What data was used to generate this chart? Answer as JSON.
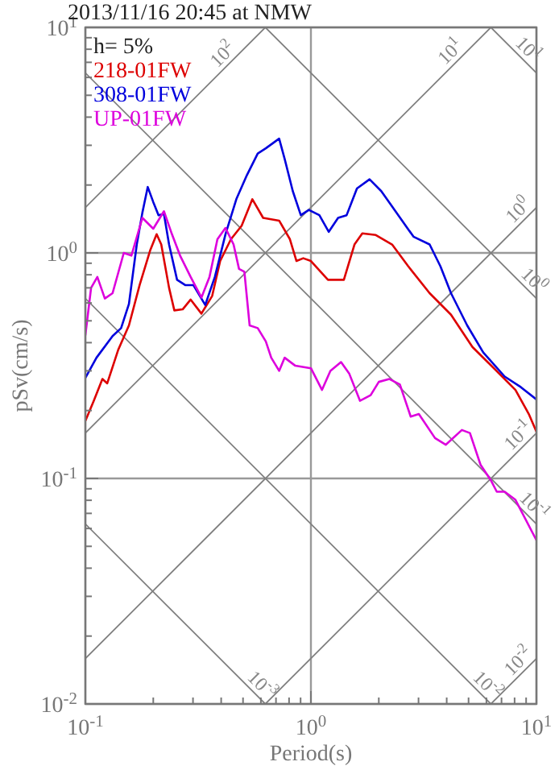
{
  "chart_data": {
    "type": "line",
    "title": "2013/11/16 20:45 at NMW",
    "xlabel": "Period(s)",
    "ylabel": "pSv(cm/s)",
    "log": "xy",
    "grid": true,
    "legend": "top left",
    "xlim": [
      0.1,
      10
    ],
    "ylim": [
      0.01,
      10
    ],
    "xticks": [
      {
        "value": 0.1,
        "label": "10$^{-1}$"
      },
      {
        "value": 0.2,
        "label": null
      },
      {
        "value": 0.3,
        "label": null
      },
      {
        "value": 0.4,
        "label": null
      },
      {
        "value": 0.5,
        "label": null
      },
      {
        "value": 0.6,
        "label": null
      },
      {
        "value": 0.7,
        "label": null
      },
      {
        "value": 0.8,
        "label": null
      },
      {
        "value": 0.9,
        "label": null
      },
      {
        "value": 1,
        "label": "10$^{0}$"
      },
      {
        "value": 2,
        "label": null
      },
      {
        "value": 3,
        "label": null
      },
      {
        "value": 4,
        "label": null
      },
      {
        "value": 5,
        "label": null
      },
      {
        "value": 6,
        "label": null
      },
      {
        "value": 7,
        "label": null
      },
      {
        "value": 8,
        "label": null
      },
      {
        "value": 9,
        "label": null
      },
      {
        "value": 10,
        "label": "10$^{1}$"
      }
    ],
    "yticks": [
      {
        "value": 0.01,
        "label": "10$^{-2}$"
      },
      {
        "value": 0.02,
        "label": null
      },
      {
        "value": 0.03,
        "label": null
      },
      {
        "value": 0.04,
        "label": null
      },
      {
        "value": 0.05,
        "label": null
      },
      {
        "value": 0.06,
        "label": null
      },
      {
        "value": 0.07,
        "label": null
      },
      {
        "value": 0.08,
        "label": null
      },
      {
        "value": 0.09,
        "label": null
      },
      {
        "value": 0.1,
        "label": "10$^{-1}$"
      },
      {
        "value": 0.2,
        "label": null
      },
      {
        "value": 0.3,
        "label": null
      },
      {
        "value": 0.4,
        "label": null
      },
      {
        "value": 0.5,
        "label": null
      },
      {
        "value": 0.6,
        "label": null
      },
      {
        "value": 0.7,
        "label": null
      },
      {
        "value": 0.8,
        "label": null
      },
      {
        "value": 0.9,
        "label": null
      },
      {
        "value": 1,
        "label": "10$^{0}$"
      },
      {
        "value": 2,
        "label": null
      },
      {
        "value": 3,
        "label": null
      },
      {
        "value": 4,
        "label": null
      },
      {
        "value": 5,
        "label": null
      },
      {
        "value": 6,
        "label": null
      },
      {
        "value": 7,
        "label": null
      },
      {
        "value": 8,
        "label": null
      },
      {
        "value": 9,
        "label": null
      },
      {
        "value": 10,
        "label": "10$^{1}$"
      }
    ],
    "series": [
      {
        "color": "#808080",
        "x": [
          0.1,
          0.628
        ],
        "values": [
          1.59,
          10
        ]
      },
      {
        "color": "#808080",
        "x": [
          0.1,
          6.28
        ],
        "values": [
          0.159,
          10
        ]
      },
      {
        "color": "#808080",
        "x": [
          0.1,
          10
        ],
        "values": [
          0.0159,
          1.59
        ]
      },
      {
        "color": "#808080",
        "x": [
          0.628,
          10
        ],
        "values": [
          0.01,
          0.159
        ]
      },
      {
        "color": "#808080",
        "x": [
          6.28,
          10
        ],
        "values": [
          0.01,
          0.0159
        ]
      },
      {
        "color": "#808080",
        "x": [
          6.28,
          10
        ],
        "values": [
          10,
          6.28
        ]
      },
      {
        "color": "#808080",
        "x": [
          0.628,
          10
        ],
        "values": [
          10,
          0.628
        ]
      },
      {
        "color": "#808080",
        "x": [
          0.1,
          10
        ],
        "values": [
          6.28,
          0.0628
        ]
      },
      {
        "color": "#808080",
        "x": [
          0.1,
          6.28
        ],
        "values": [
          0.628,
          0.01
        ]
      },
      {
        "color": "#808080",
        "x": [
          0.1,
          0.628
        ],
        "values": [
          0.0628,
          0.01
        ]
      },
      {
        "name": "218-01FW",
        "color": "#dd0000",
        "x": [
          0.1,
          0.109,
          0.119,
          0.125,
          0.14,
          0.156,
          0.174,
          0.194,
          0.207,
          0.217,
          0.235,
          0.248,
          0.27,
          0.293,
          0.327,
          0.365,
          0.396,
          0.442,
          0.493,
          0.55,
          0.614,
          0.723,
          0.807,
          0.863,
          0.925,
          1.0,
          1.19,
          1.4,
          1.56,
          1.69,
          1.94,
          2.29,
          2.7,
          3.36,
          4.18,
          5.2,
          6.48,
          8.07,
          9.25,
          10
        ],
        "values": [
          0.18,
          0.221,
          0.276,
          0.264,
          0.373,
          0.477,
          0.72,
          1.03,
          1.21,
          1.09,
          0.7,
          0.556,
          0.562,
          0.621,
          0.538,
          0.645,
          0.921,
          1.15,
          1.32,
          1.73,
          1.43,
          1.39,
          1.15,
          0.921,
          0.947,
          0.921,
          0.76,
          0.76,
          1.09,
          1.22,
          1.2,
          1.09,
          0.873,
          0.663,
          0.532,
          0.383,
          0.308,
          0.247,
          0.193,
          0.161
        ]
      },
      {
        "name": "308-01FW",
        "color": "#0000dd",
        "x": [
          0.1,
          0.112,
          0.132,
          0.144,
          0.156,
          0.169,
          0.179,
          0.189,
          0.2,
          0.211,
          0.223,
          0.235,
          0.255,
          0.277,
          0.301,
          0.34,
          0.375,
          0.418,
          0.467,
          0.52,
          0.581,
          0.631,
          0.723,
          0.765,
          0.831,
          0.902,
          0.979,
          1.09,
          1.2,
          1.32,
          1.44,
          1.6,
          1.82,
          2.05,
          2.35,
          2.85,
          3.36,
          3.75,
          4.18,
          4.93,
          5.81,
          7.23,
          8.53,
          10
        ],
        "values": [
          0.279,
          0.343,
          0.428,
          0.464,
          0.594,
          1.09,
          1.51,
          1.96,
          1.68,
          1.47,
          1.49,
          1.09,
          0.76,
          0.72,
          0.72,
          0.588,
          0.782,
          1.21,
          1.73,
          2.21,
          2.76,
          2.91,
          3.21,
          2.61,
          1.88,
          1.47,
          1.55,
          1.47,
          1.24,
          1.43,
          1.47,
          1.93,
          2.12,
          1.88,
          1.55,
          1.18,
          1.09,
          0.873,
          0.663,
          0.477,
          0.362,
          0.283,
          0.254,
          0.224
        ]
      },
      {
        "name": "UP-01FW",
        "color": "#dd00dd",
        "x": [
          0.1,
          0.106,
          0.113,
          0.122,
          0.132,
          0.148,
          0.16,
          0.179,
          0.2,
          0.223,
          0.242,
          0.263,
          0.293,
          0.327,
          0.355,
          0.385,
          0.418,
          0.454,
          0.48,
          0.507,
          0.535,
          0.581,
          0.631,
          0.667,
          0.723,
          0.765,
          0.853,
          1.0,
          1.12,
          1.22,
          1.36,
          1.48,
          1.65,
          1.84,
          2.0,
          2.23,
          2.48,
          2.77,
          3.01,
          3.55,
          3.96,
          4.67,
          5.07,
          5.65,
          6.31,
          6.67,
          7.23,
          8.07,
          10
        ],
        "values": [
          0.432,
          0.7,
          0.782,
          0.628,
          0.663,
          1.0,
          0.973,
          1.43,
          1.28,
          1.53,
          1.21,
          0.973,
          0.782,
          0.634,
          0.782,
          1.15,
          1.29,
          1.09,
          0.849,
          0.825,
          0.477,
          0.464,
          0.405,
          0.343,
          0.3,
          0.343,
          0.316,
          0.308,
          0.247,
          0.3,
          0.328,
          0.291,
          0.221,
          0.234,
          0.268,
          0.276,
          0.261,
          0.188,
          0.193,
          0.151,
          0.141,
          0.164,
          0.159,
          0.115,
          0.0973,
          0.0873,
          0.0873,
          0.0804,
          0.0532
        ]
      }
    ],
    "annotations": [
      "h= 5%",
      {
        "text": "10$^{2}$",
        "x": 0.44,
        "y": 7.0
      },
      {
        "text": "10$^{1}$",
        "x": 4.5,
        "y": 7.2
      },
      {
        "text": "10$^{0}$",
        "x": 9,
        "y": 1.43
      },
      {
        "text": "10$^{-1}$",
        "x": 9,
        "y": 0.143
      },
      {
        "text": "10$^{-2}$",
        "x": 9,
        "y": 0.0143
      },
      {
        "text": "10$^{1}$",
        "x": 8.5,
        "y": 7.39
      },
      {
        "text": "10$^{0}$",
        "x": 9,
        "y": 0.698
      },
      {
        "text": "10$^{-1}$",
        "x": 9,
        "y": 0.0698
      },
      {
        "text": "10$^{-2}$",
        "x": 5.6,
        "y": 0.0112
      },
      {
        "text": "10$^{-3}$",
        "x": 0.56,
        "y": 0.0112
      }
    ]
  }
}
